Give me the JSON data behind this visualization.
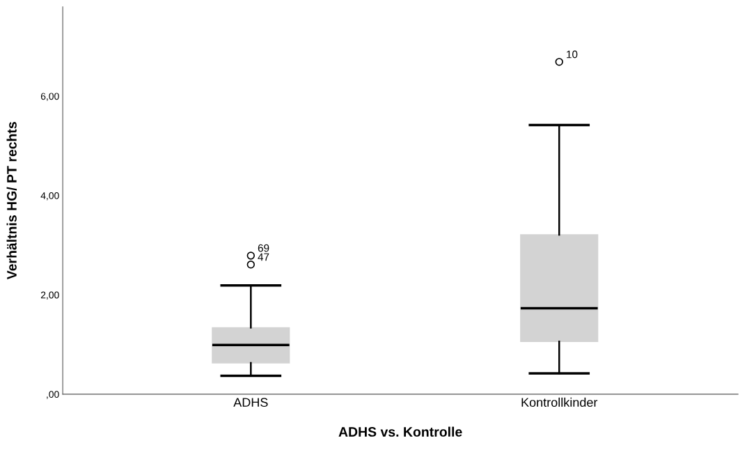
{
  "chart_data": {
    "type": "box",
    "xlabel": "ADHS vs. Kontrolle",
    "ylabel": "Verhältnis HG/ PT rechts",
    "categories": [
      "ADHS",
      "Kontrollkinder"
    ],
    "boxes": [
      {
        "low": 0.37,
        "q1": 0.63,
        "median": 0.99,
        "q3": 1.34,
        "high": 2.19,
        "outliers": [
          2.79,
          2.61
        ]
      },
      {
        "low": 0.42,
        "q1": 1.06,
        "median": 1.73,
        "q3": 3.21,
        "high": 5.42,
        "outliers": [
          6.69
        ]
      }
    ],
    "color": "#d3d3d3",
    "ylim": [
      0,
      7.8
    ],
    "yticks": [
      {
        "value": 0,
        "label": ",00"
      },
      {
        "value": 2,
        "label": "2,00"
      },
      {
        "value": 4,
        "label": "4,00"
      },
      {
        "value": 6,
        "label": "6,00"
      }
    ],
    "annotations": [
      "69",
      "47",
      "10"
    ],
    "grid": false
  }
}
